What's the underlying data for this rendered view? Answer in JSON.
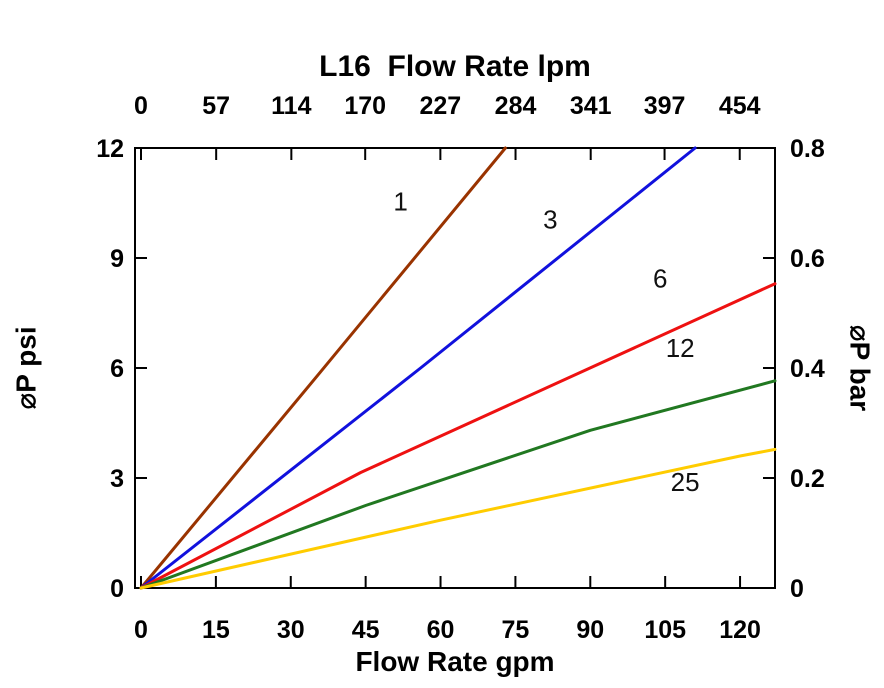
{
  "page": {
    "background": "#ffffff"
  },
  "chart_data": {
    "type": "line",
    "title": "L16  Flow Rate lpm",
    "axes": {
      "bottom": {
        "label": "Flow Rate gpm",
        "ticks": [
          0,
          15,
          30,
          45,
          60,
          75,
          90,
          105,
          120
        ],
        "range": [
          0,
          127
        ]
      },
      "top": {
        "unit": "lpm",
        "ticks": [
          0,
          57,
          114,
          170,
          227,
          284,
          341,
          397,
          454
        ],
        "lpm_per_gpm": 3.7854
      },
      "left": {
        "label": "⌀P psi",
        "ticks": [
          0,
          3,
          6,
          9,
          12
        ],
        "range": [
          0,
          12
        ]
      },
      "right": {
        "label": "⌀P bar",
        "ticks": [
          0,
          0.2,
          0.4,
          0.6,
          0.8
        ],
        "range": [
          0,
          0.8
        ]
      }
    },
    "grid": false,
    "legend": "inline-labels",
    "series": [
      {
        "label": "1",
        "color": "#993300",
        "points": [
          [
            0,
            0
          ],
          [
            36,
            5.9
          ],
          [
            73,
            12
          ]
        ],
        "label_at": [
          52,
          10.3
        ]
      },
      {
        "label": "3",
        "color": "#1111DD",
        "points": [
          [
            0,
            0
          ],
          [
            56,
            6.0
          ],
          [
            111,
            12
          ]
        ],
        "label_at": [
          82,
          9.8
        ]
      },
      {
        "label": "6",
        "color": "#EE1111",
        "points": [
          [
            0,
            0
          ],
          [
            44,
            3.15
          ],
          [
            127,
            8.3
          ]
        ],
        "label_at": [
          104,
          8.2
        ]
      },
      {
        "label": "12",
        "color": "#217821",
        "points": [
          [
            0,
            0
          ],
          [
            45,
            2.25
          ],
          [
            90,
            4.3
          ],
          [
            127,
            5.65
          ]
        ],
        "label_at": [
          108,
          6.3
        ]
      },
      {
        "label": "25",
        "color": "#FFCC00",
        "points": [
          [
            0,
            0
          ],
          [
            60,
            1.85
          ],
          [
            120,
            3.6
          ],
          [
            127,
            3.78
          ]
        ],
        "label_at": [
          109,
          2.65
        ]
      }
    ]
  }
}
